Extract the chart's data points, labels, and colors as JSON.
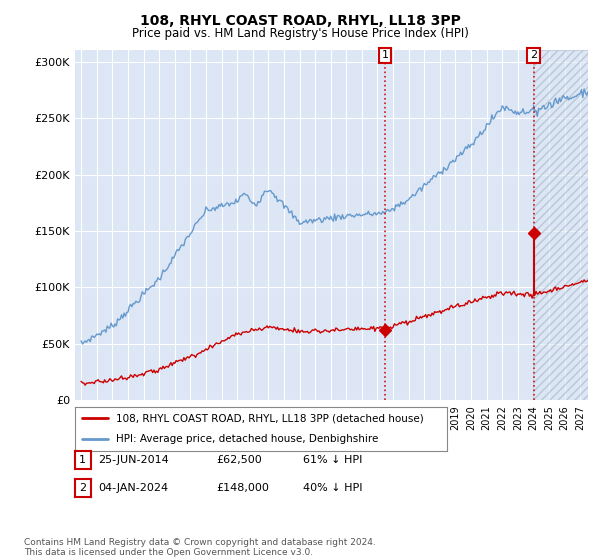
{
  "title": "108, RHYL COAST ROAD, RHYL, LL18 3PP",
  "subtitle": "Price paid vs. HM Land Registry's House Price Index (HPI)",
  "hpi_color": "#6699cc",
  "price_color": "#cc0000",
  "bg_color": "#dce6f5",
  "ylim": [
    0,
    310000
  ],
  "yticks": [
    0,
    50000,
    100000,
    150000,
    200000,
    250000,
    300000
  ],
  "ytick_labels": [
    "£0",
    "£50K",
    "£100K",
    "£150K",
    "£200K",
    "£250K",
    "£300K"
  ],
  "legend_label_price": "108, RHYL COAST ROAD, RHYL, LL18 3PP (detached house)",
  "legend_label_hpi": "HPI: Average price, detached house, Denbighshire",
  "marker1_date": 2014.49,
  "marker1_price": 62500,
  "marker1_label": "1",
  "marker1_text": "25-JUN-2014",
  "marker1_value": "£62,500",
  "marker1_pct": "61% ↓ HPI",
  "marker2_date": 2024.01,
  "marker2_price": 148000,
  "marker2_label": "2",
  "marker2_text": "04-JAN-2024",
  "marker2_value": "£148,000",
  "marker2_pct": "40% ↓ HPI",
  "footer": "Contains HM Land Registry data © Crown copyright and database right 2024.\nThis data is licensed under the Open Government Licence v3.0.",
  "grid_color": "#cccccc",
  "future_start": 2024.0,
  "xmin": 1994.6,
  "xmax": 2027.5
}
